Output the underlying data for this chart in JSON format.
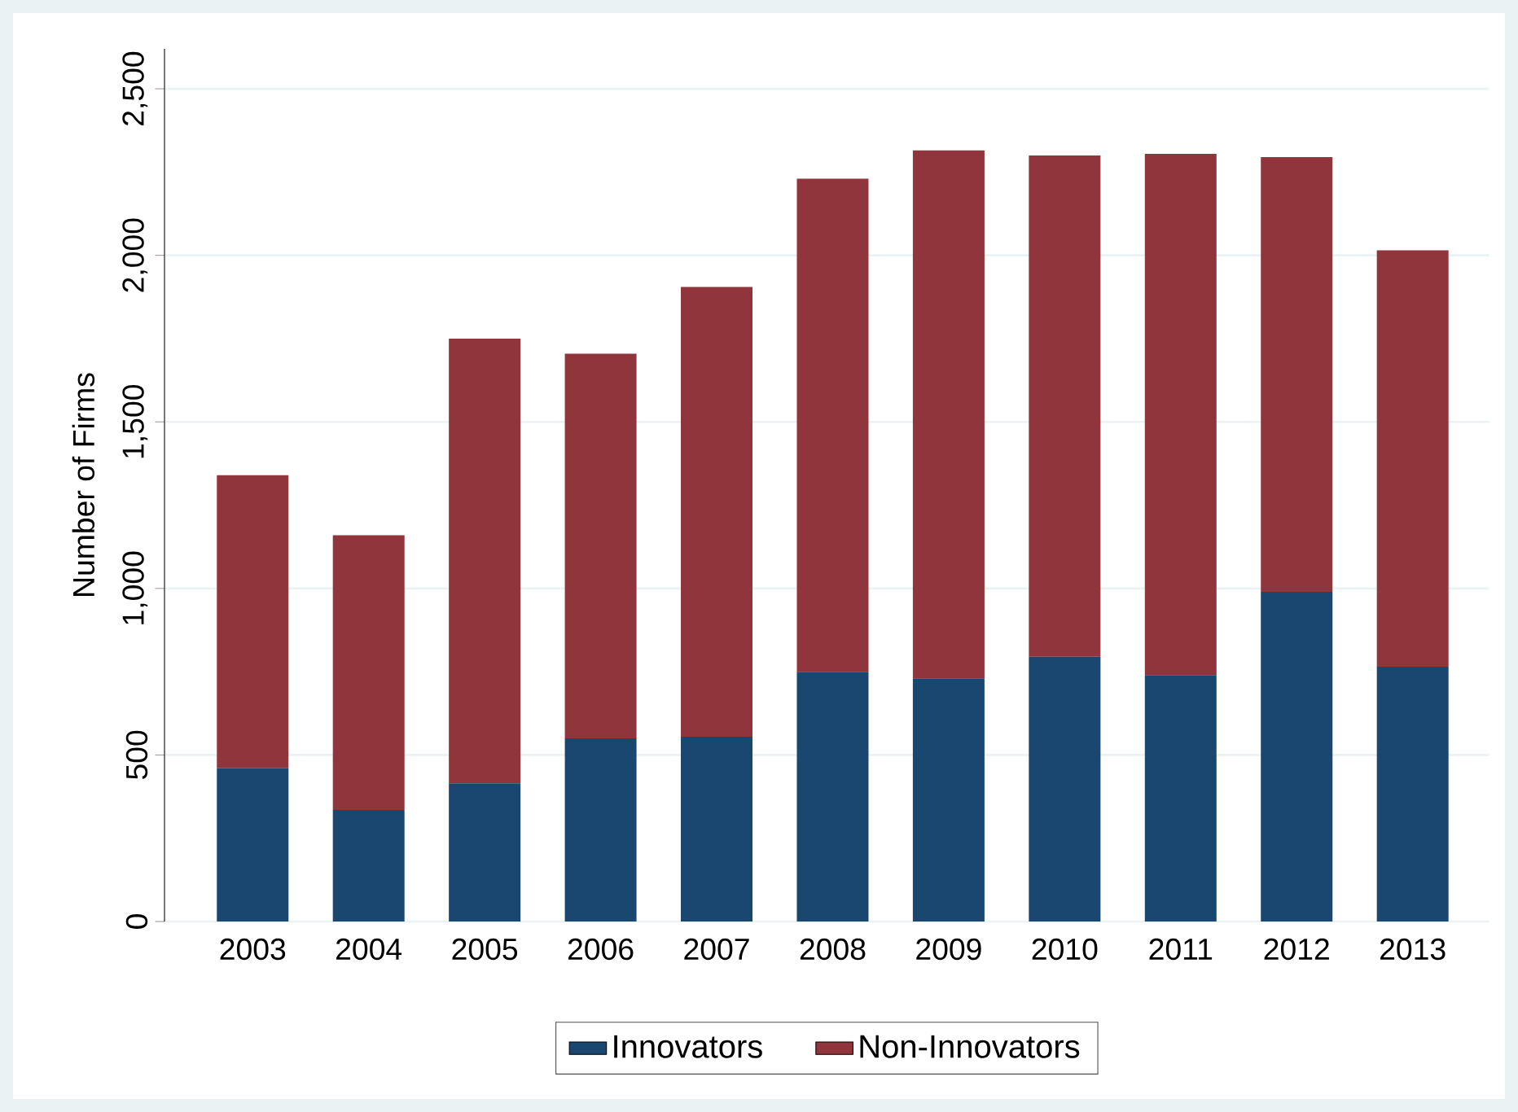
{
  "chart_data": {
    "type": "bar",
    "stacked": true,
    "ylabel": "Number of Firms",
    "categories": [
      "2003",
      "2004",
      "2005",
      "2006",
      "2007",
      "2008",
      "2009",
      "2010",
      "2011",
      "2012",
      "2013"
    ],
    "series": [
      {
        "name": "Innovators",
        "color": "#1a476f",
        "values": [
          460,
          335,
          415,
          550,
          555,
          750,
          730,
          795,
          740,
          990,
          765
        ]
      },
      {
        "name": "Non-Innovators",
        "color": "#90353b",
        "values": [
          880,
          825,
          1335,
          1155,
          1350,
          1480,
          1585,
          1505,
          1565,
          1305,
          1250
        ]
      }
    ],
    "ylim": [
      0,
      2620
    ],
    "yticks": [
      0,
      {
        "value": 500,
        "label": "500"
      },
      {
        "value": 1000,
        "label": "1,000"
      },
      {
        "value": 1500,
        "label": "1,500"
      },
      {
        "value": 2000,
        "label": "2,000"
      },
      {
        "value": 2500,
        "label": "2,500"
      }
    ],
    "grid": "y",
    "legend": "bottom"
  }
}
